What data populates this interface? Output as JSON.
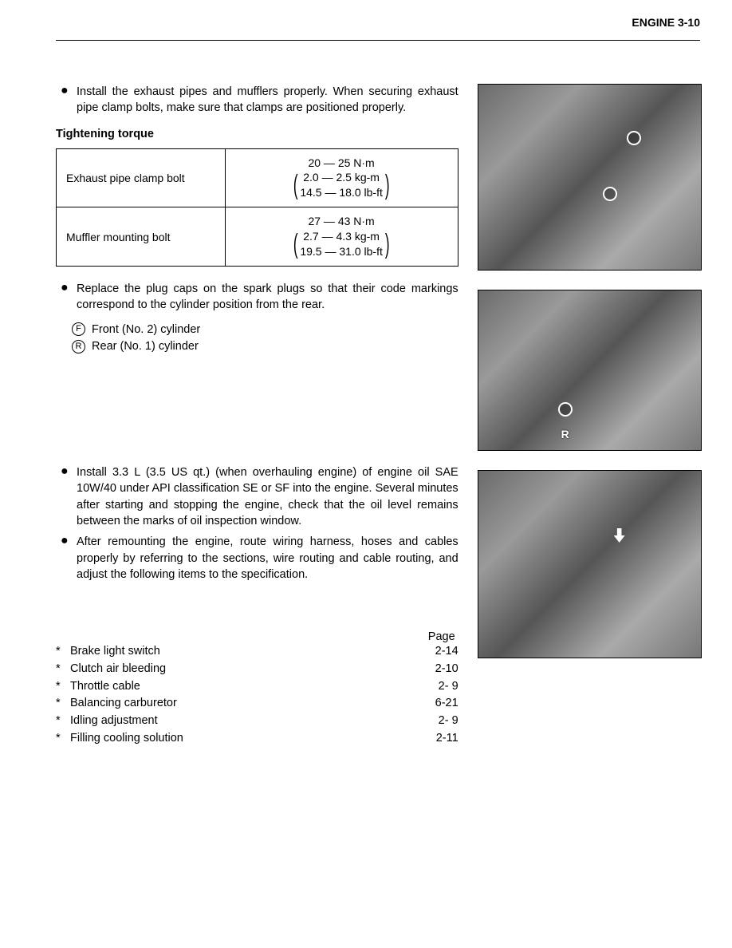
{
  "header": {
    "title": "ENGINE  3-10"
  },
  "bullets": {
    "b1": "Install the exhaust pipes and mufflers properly. When securing exhaust pipe clamp bolts, make sure that clamps are positioned properly.",
    "b2": "Replace the plug caps on the spark plugs so that their code markings correspond to the cylinder position from the rear.",
    "b3": "Install 3.3 L (3.5 US qt.) (when overhauling engine) of engine oil SAE 10W/40 under API classification SE or SF into the engine. Several minutes after starting and stopping the engine, check that the oil level remains between the marks of oil inspection window.",
    "b4": "After remounting the engine, route wiring harness, hoses and cables properly by referring to the sections, wire routing and cable routing, and adjust the following items to the specification."
  },
  "tighteningTitle": "Tightening torque",
  "torqueTable": {
    "row1": {
      "label": "Exhaust pipe clamp bolt",
      "nm": "20 — 25 N·m",
      "kgm": "2.0 — 2.5 kg-m",
      "lbft": "14.5 — 18.0 lb-ft"
    },
    "row2": {
      "label": "Muffler mounting bolt",
      "nm": "27 — 43 N·m",
      "kgm": "2.7 — 4.3 kg-m",
      "lbft": "19.5 — 31.0 lb-ft"
    }
  },
  "cylinders": {
    "front": "Front (No. 2) cylinder",
    "rear": "Rear (No. 1) cylinder",
    "F": "F",
    "R": "R"
  },
  "pageRefHeader": "Page",
  "refs": [
    {
      "label": "Brake light switch",
      "page": "2-14"
    },
    {
      "label": "Clutch air bleeding",
      "page": "2-10"
    },
    {
      "label": "Throttle cable",
      "page": "2-  9"
    },
    {
      "label": "Balancing carburetor",
      "page": "6-21"
    },
    {
      "label": "Idling adjustment",
      "page": "2-  9"
    },
    {
      "label": "Filling cooling solution",
      "page": "2-11"
    }
  ],
  "star": "*",
  "bulletChar": "●",
  "photo2Label": "R"
}
